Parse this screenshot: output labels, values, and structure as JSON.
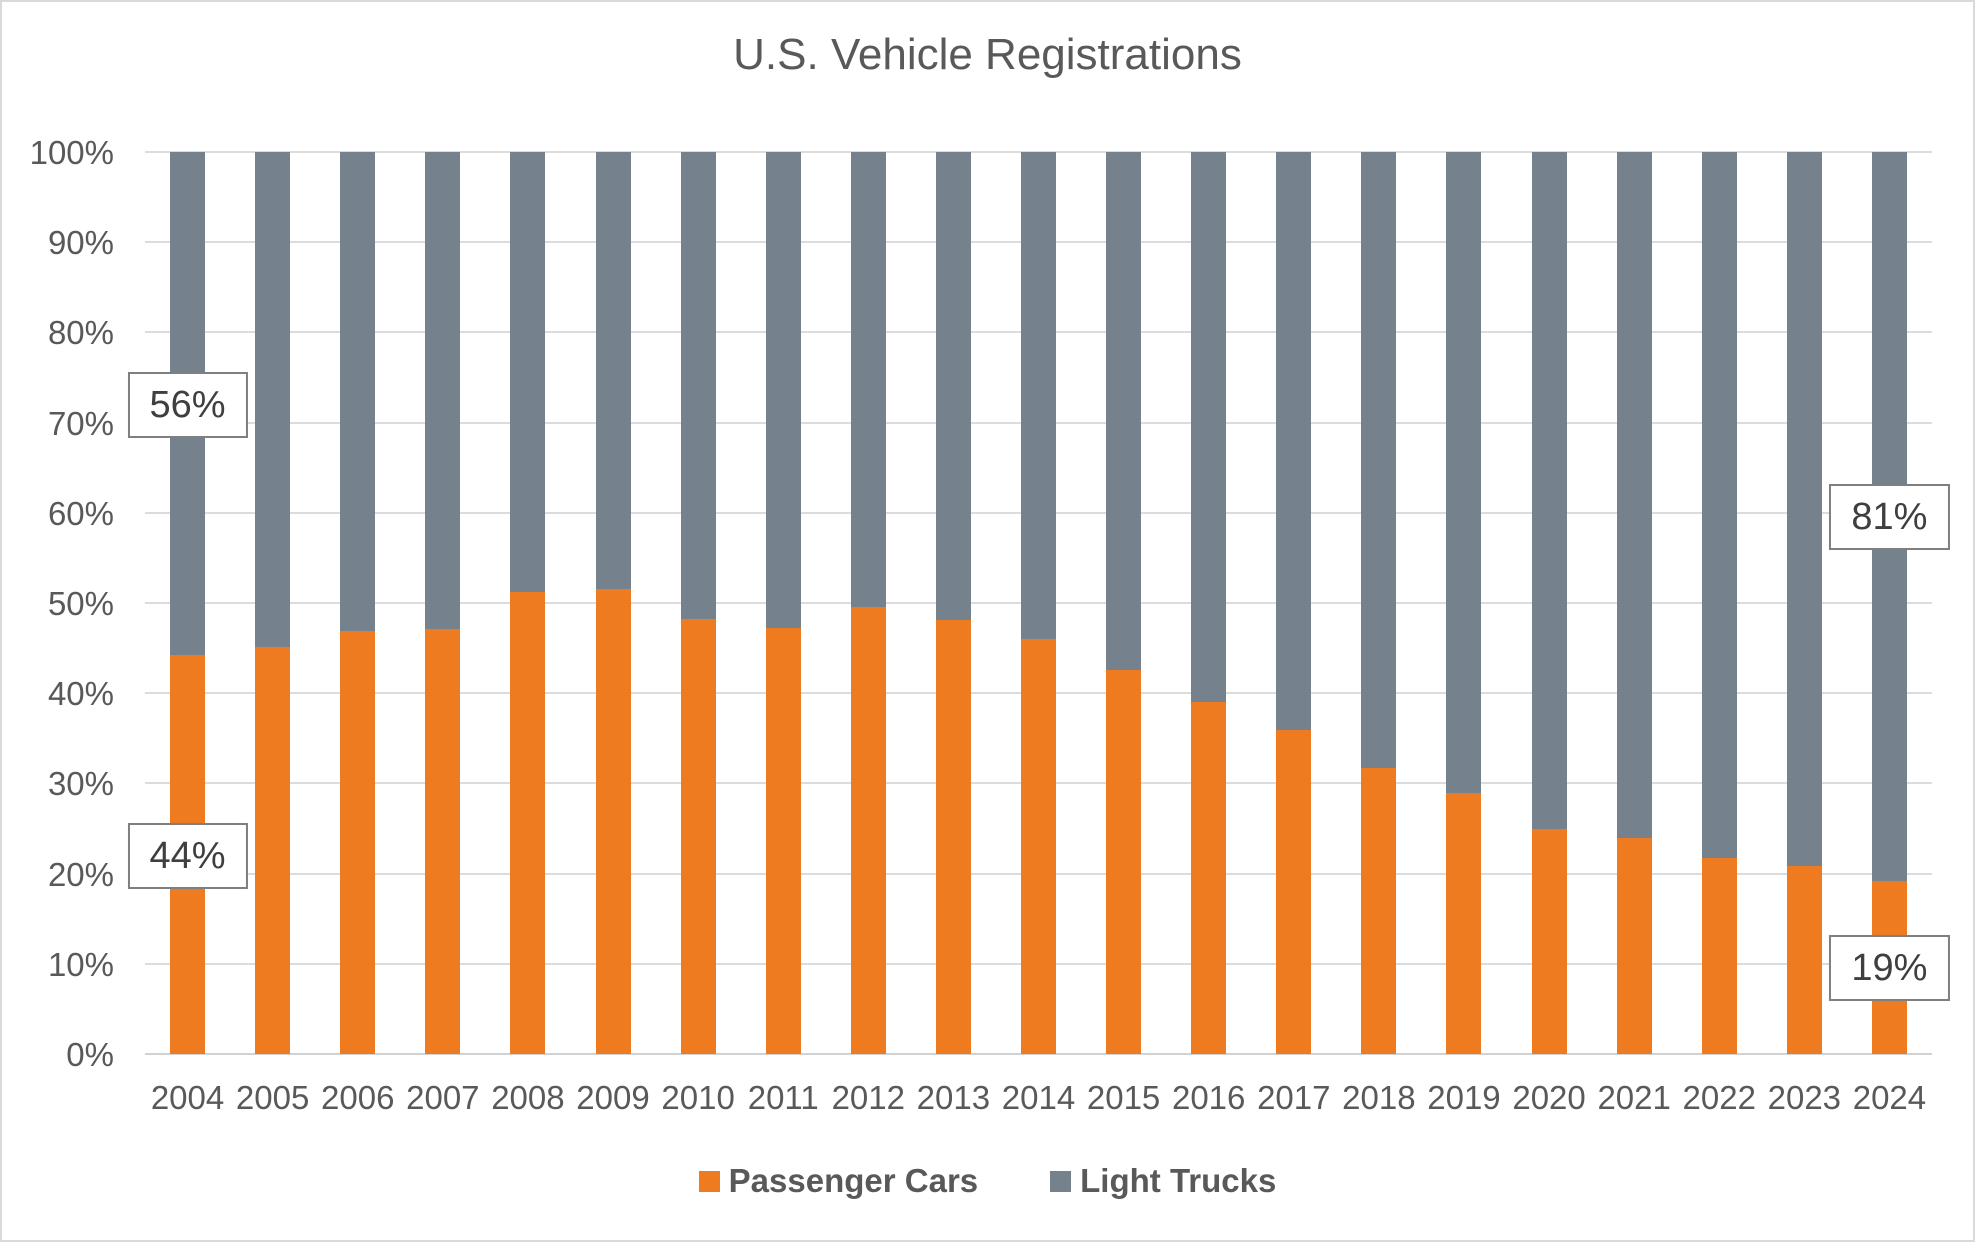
{
  "chart_data": {
    "type": "bar",
    "stacked": true,
    "percent_stacked": true,
    "title": "U.S. Vehicle Registrations",
    "xlabel": "",
    "ylabel": "",
    "ylim": [
      0,
      100
    ],
    "ytick_step": 10,
    "ytick_labels": [
      "0%",
      "10%",
      "20%",
      "30%",
      "40%",
      "50%",
      "60%",
      "70%",
      "80%",
      "90%",
      "100%"
    ],
    "grid": true,
    "legend_position": "bottom",
    "categories": [
      "2004",
      "2005",
      "2006",
      "2007",
      "2008",
      "2009",
      "2010",
      "2011",
      "2012",
      "2013",
      "2014",
      "2015",
      "2016",
      "2017",
      "2018",
      "2019",
      "2020",
      "2021",
      "2022",
      "2023",
      "2024"
    ],
    "series": [
      {
        "name": "Passenger Cars",
        "color": "#ef7b20",
        "values": [
          44.2,
          45.1,
          46.9,
          47.1,
          51.2,
          51.5,
          48.2,
          47.2,
          49.6,
          48.1,
          46.0,
          42.6,
          39.0,
          35.9,
          31.7,
          28.9,
          25.0,
          23.9,
          21.7,
          20.8,
          19.2
        ]
      },
      {
        "name": "Light Trucks",
        "color": "#75818d",
        "values": [
          55.8,
          54.9,
          53.1,
          52.9,
          48.8,
          48.5,
          51.8,
          52.8,
          50.4,
          51.9,
          54.0,
          57.4,
          61.0,
          64.1,
          68.3,
          71.1,
          75.0,
          76.1,
          78.3,
          79.2,
          80.8
        ]
      }
    ],
    "callouts": [
      {
        "label": "56%",
        "category": "2004",
        "series": "Light Trucks",
        "category_index": 0,
        "center_pct": 72
      },
      {
        "label": "44%",
        "category": "2004",
        "series": "Passenger Cars",
        "category_index": 0,
        "center_pct": 22
      },
      {
        "label": "81%",
        "category": "2024",
        "series": "Light Trucks",
        "category_index": 20,
        "center_pct": 59.5
      },
      {
        "label": "19%",
        "category": "2024",
        "series": "Passenger Cars",
        "category_index": 20,
        "center_pct": 9.5
      }
    ]
  },
  "styles": {
    "gridline_color": "#dcdcdc",
    "axis_line_color": "#d2d2d2",
    "text_color": "#595959",
    "callout_border_color": "#7f7f7f",
    "callout_text_color": "#3f3f3f",
    "frame_border_color": "#d9d9d9",
    "background": "#ffffff"
  }
}
